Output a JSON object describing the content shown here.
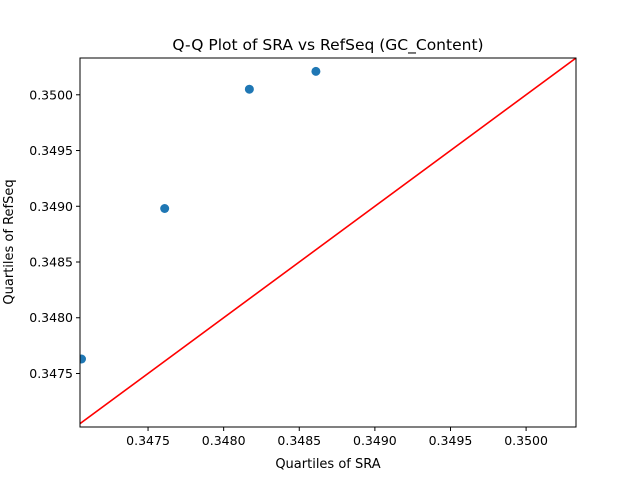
{
  "chart_data": {
    "type": "scatter",
    "title": "Q-Q Plot of SRA vs RefSeq (GC_Content)",
    "xlabel": "Quartiles of SRA",
    "ylabel": "Quartiles of RefSeq",
    "xlim": [
      0.34705,
      0.35033
    ],
    "ylim": [
      0.34702,
      0.35033
    ],
    "x_ticks": [
      0.3475,
      0.348,
      0.3485,
      0.349,
      0.3495,
      0.35
    ],
    "x_tick_labels": [
      "0.3475",
      "0.3480",
      "0.3485",
      "0.3490",
      "0.3495",
      "0.3500"
    ],
    "y_ticks": [
      0.3475,
      0.348,
      0.3485,
      0.349,
      0.3495,
      0.35
    ],
    "y_tick_labels": [
      "0.3475",
      "0.3480",
      "0.3485",
      "0.3490",
      "0.3495",
      "0.3500"
    ],
    "points": [
      {
        "x": 0.34706,
        "y": 0.34763
      },
      {
        "x": 0.34761,
        "y": 0.34898
      },
      {
        "x": 0.34817,
        "y": 0.35005
      },
      {
        "x": 0.34861,
        "y": 0.35021
      }
    ],
    "reference_line": {
      "x": [
        0.34702,
        0.35033
      ],
      "y": [
        0.34702,
        0.35033
      ]
    },
    "grid": false,
    "colors": {
      "points": "#1f77b4",
      "reference_line": "#ff0000",
      "axes": "#000000"
    }
  }
}
